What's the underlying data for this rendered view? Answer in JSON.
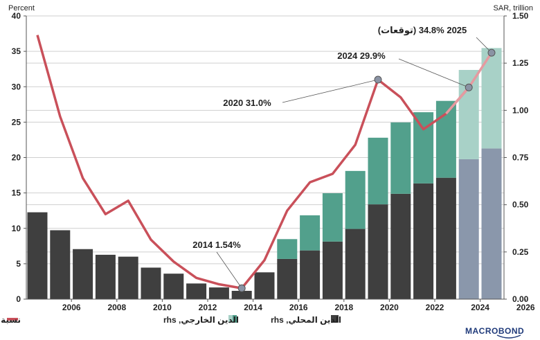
{
  "chart_data": {
    "type": "bar",
    "left_axis_title": "Percent",
    "right_axis_title": "SAR, trillion",
    "y_left": {
      "min": 0,
      "max": 40,
      "ticks": [
        "0",
        "5",
        "10",
        "15",
        "20",
        "25",
        "30",
        "35",
        "40"
      ]
    },
    "y_right": {
      "min": 0,
      "max": 1.5,
      "ticks": [
        "0.00",
        "0.25",
        "0.50",
        "0.75",
        "1.00",
        "1.25",
        "1.50"
      ]
    },
    "x_ticks": [
      "2006",
      "2008",
      "2010",
      "2012",
      "2014",
      "2016",
      "2018",
      "2020",
      "2022",
      "2024",
      "2026"
    ],
    "years": [
      2005,
      2006,
      2007,
      2008,
      2009,
      2010,
      2011,
      2012,
      2013,
      2014,
      2015,
      2016,
      2017,
      2018,
      2019,
      2020,
      2021,
      2022,
      2023,
      2024,
      2025
    ],
    "series": [
      {
        "name": "الدين المحلي, rhs",
        "axis": "right",
        "color": "#3f3f3f",
        "forecast_color": "#8a97ab",
        "values": [
          0.46,
          0.365,
          0.265,
          0.235,
          0.225,
          0.167,
          0.135,
          0.083,
          0.062,
          0.044,
          0.142,
          0.213,
          0.258,
          0.305,
          0.372,
          0.502,
          0.558,
          0.613,
          0.643,
          0.741,
          0.798
        ]
      },
      {
        "name": "الدين الخارجي, rhs",
        "axis": "right",
        "color": "#52a08c",
        "forecast_color": "#a8d1c7",
        "values": [
          0,
          0,
          0,
          0,
          0,
          0,
          0,
          0,
          0,
          0,
          0,
          0.105,
          0.186,
          0.256,
          0.307,
          0.353,
          0.378,
          0.377,
          0.407,
          0.473,
          0.532
        ]
      },
      {
        "name": "نسبة الدين العام إلى الناتج المحلي الإجمالي, lhs",
        "axis": "left",
        "color": "#c9505a",
        "values": [
          37.3,
          25.8,
          17.1,
          12.0,
          13.9,
          8.4,
          5.3,
          3.0,
          2.1,
          1.54,
          5.5,
          12.5,
          16.5,
          17.7,
          21.8,
          31.0,
          28.5,
          24.0,
          26.2,
          29.9,
          34.8
        ]
      }
    ],
    "forecast_years": [
      2024,
      2025
    ],
    "annotations": [
      {
        "label": "2014 1.54%",
        "year": 2014,
        "value": 1.54
      },
      {
        "label": "2020 31.0%",
        "year": 2020,
        "value": 31.0
      },
      {
        "label": "2024 29.9%",
        "year": 2024,
        "value": 29.9
      },
      {
        "label": "2025 34.8% (توقعات)",
        "year": 2025,
        "value": 34.8
      }
    ],
    "legend_position": "bottom",
    "grid": "horizontal"
  },
  "legend": {
    "line_label": "نسبة الدين العام إلى الناتج المحلي الإجمالي, lhs",
    "external_label": "الدين الخارجي, rhs",
    "domestic_label": "الدين المحلي, rhs"
  },
  "branding": {
    "logo_text": "MACROBOND"
  },
  "colors": {
    "line": "#c9505a",
    "domestic": "#3f3f3f",
    "external": "#52a08c",
    "domestic_forecast": "#8a97ab",
    "external_forecast": "#a8d1c7"
  }
}
